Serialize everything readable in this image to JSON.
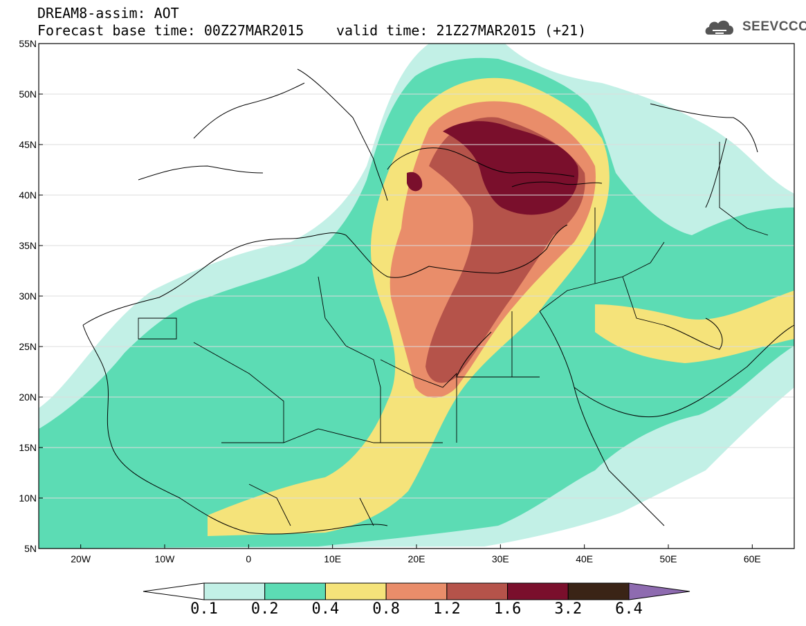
{
  "header": {
    "title": "DREAM8-assim: AOT",
    "base_time_label": "Forecast base time: 00Z27MAR2015",
    "valid_time_label": "valid time: 21Z27MAR2015 (+21)",
    "logo_text": "SEEVCCC"
  },
  "map": {
    "lat_labels": [
      "55N",
      "50N",
      "45N",
      "40N",
      "35N",
      "30N",
      "25N",
      "20N",
      "15N",
      "10N",
      "5N"
    ],
    "lon_labels": [
      "20W",
      "10W",
      "0",
      "10E",
      "20E",
      "30E",
      "40E",
      "50E",
      "60E"
    ],
    "lat_range": [
      5,
      55
    ],
    "lon_range": [
      -25,
      65
    ]
  },
  "colorbar": {
    "labels": [
      "0.1",
      "0.2",
      "0.4",
      "0.8",
      "1.2",
      "1.6",
      "3.2",
      "6.4"
    ],
    "colors": [
      "#ffffff",
      "#c2f0e6",
      "#5cdcb4",
      "#f5e37a",
      "#e98d6a",
      "#b5534a",
      "#7a0f2c",
      "#3a2416",
      "#8e6bb0"
    ]
  }
}
